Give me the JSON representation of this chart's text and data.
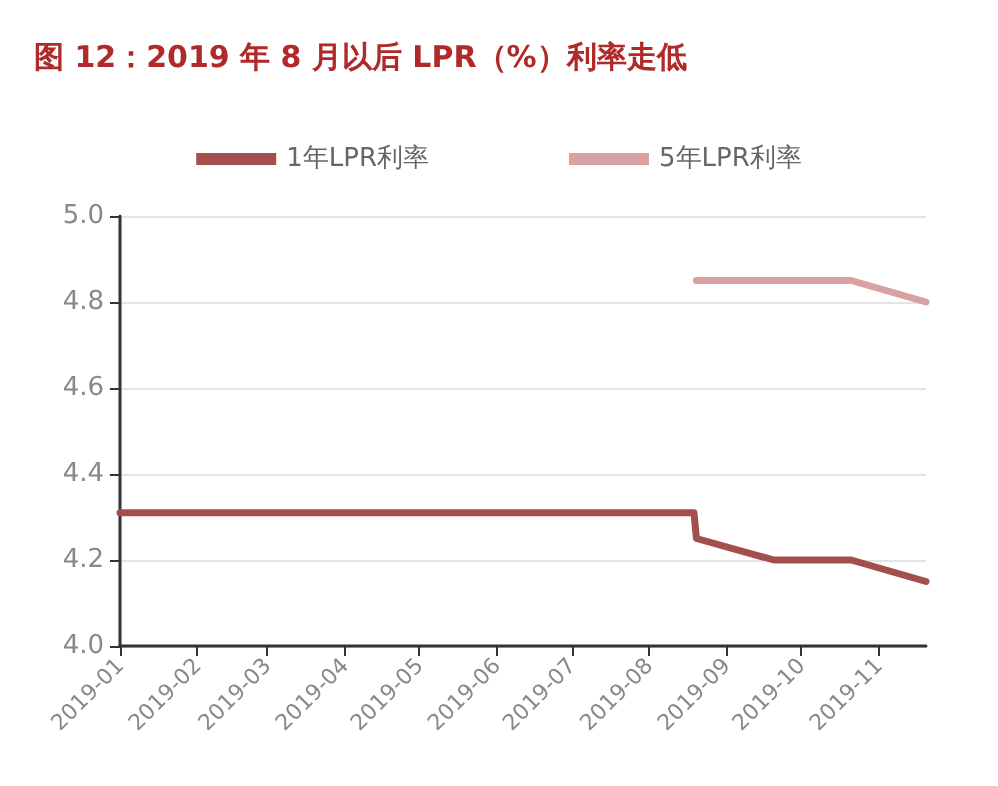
{
  "chart_data": {
    "type": "line",
    "title": "图 12：2019 年 8 月以后 LPR（%）利率走低",
    "series": [
      {
        "name": "1年LPR利率",
        "color": "#a34f4d",
        "x": [
          "2019-01-01",
          "2019-08-19",
          "2019-08-20",
          "2019-09-20",
          "2019-10-21",
          "2019-11-20"
        ],
        "values": [
          4.31,
          4.31,
          4.25,
          4.2,
          4.2,
          4.15
        ]
      },
      {
        "name": "5年LPR利率",
        "color": "#d8a2a2",
        "x": [
          "2019-08-20",
          "2019-09-20",
          "2019-10-21",
          "2019-11-20"
        ],
        "values": [
          4.85,
          4.85,
          4.85,
          4.8
        ]
      }
    ],
    "xlim": [
      "2019-01",
      "2019-11-20"
    ],
    "xticks": [
      "2019-01",
      "2019-02",
      "2019-03",
      "2019-04",
      "2019-05",
      "2019-06",
      "2019-07",
      "2019-08",
      "2019-09",
      "2019-10",
      "2019-11"
    ],
    "ylim": [
      4.0,
      5.0
    ],
    "yticks": [
      {
        "value": 4.0,
        "label": "4.0"
      },
      4.2,
      4.4,
      4.6,
      4.8,
      {
        "value": 5.0,
        "label": "5.0"
      }
    ],
    "grid": "y",
    "legend": "top",
    "marker": "none",
    "line_style": "solid"
  }
}
